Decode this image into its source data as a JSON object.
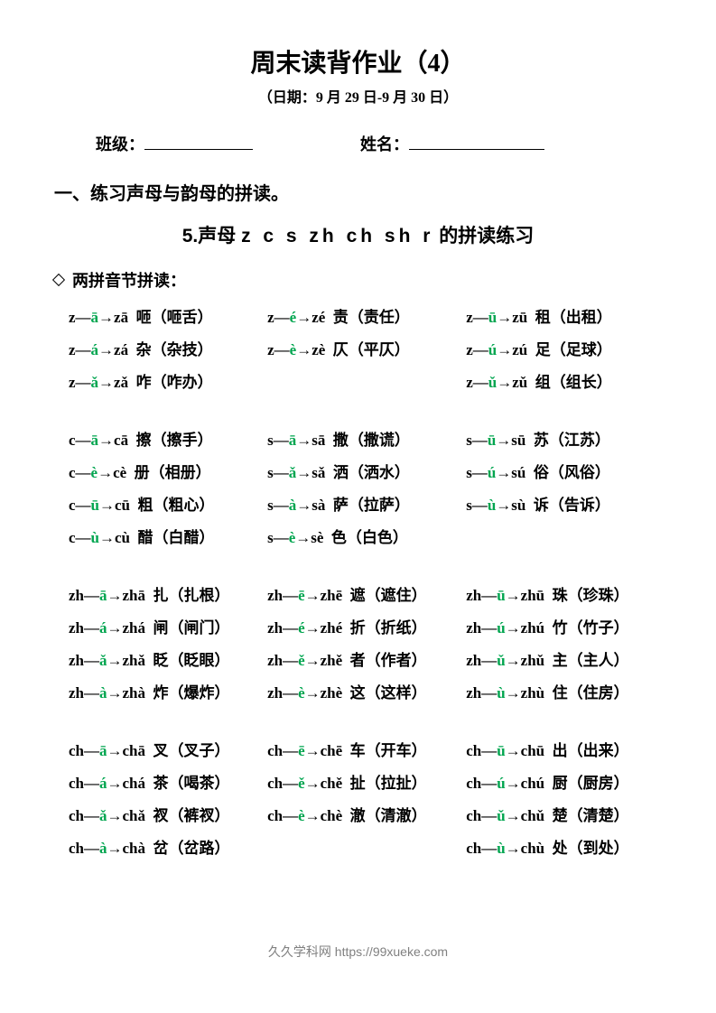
{
  "colors": {
    "text": "#000000",
    "accent": "#00a54f",
    "footer": "#808080",
    "background": "#ffffff"
  },
  "header": {
    "title": "周末读背作业（4）",
    "date": "（日期：9 月 29 日-9 月 30 日）",
    "class_label": "班级：",
    "name_label": "姓名："
  },
  "section": {
    "heading": "一、练习声母与韵母的拼读。",
    "subtitle_prefix": "5.声母 ",
    "subtitle_letters": "z  c  s  zh  ch  sh  r",
    "subtitle_suffix": " 的拼读练习",
    "sub_heading": "两拼音节拼读："
  },
  "blocks": [
    {
      "cols": [
        [
          {
            "i": "z",
            "v": "ā",
            "r": "zā",
            "w": "咂（咂舌）"
          },
          {
            "i": "z",
            "v": "á",
            "r": "zá",
            "w": "杂（杂技）"
          },
          {
            "i": "z",
            "v": "ǎ",
            "r": "zǎ",
            "w": "咋（咋办）"
          }
        ],
        [
          {
            "i": "z",
            "v": "é",
            "r": "zé",
            "w": "责（责任）"
          },
          {
            "i": "z",
            "v": "è",
            "r": "zè",
            "w": "仄（平仄）"
          }
        ],
        [
          {
            "i": "z",
            "v": "ū",
            "r": "zū",
            "w": "租（出租）"
          },
          {
            "i": "z",
            "v": "ú",
            "r": "zú",
            "w": "足（足球）"
          },
          {
            "i": "z",
            "v": "ǔ",
            "r": "zǔ",
            "w": "组（组长）"
          }
        ]
      ]
    },
    {
      "cols": [
        [
          {
            "i": "c",
            "v": "ā",
            "r": "cā",
            "w": "擦（擦手）"
          },
          {
            "i": "c",
            "v": "è",
            "r": "cè",
            "w": "册（相册）"
          },
          {
            "i": "c",
            "v": "ū",
            "r": "cū",
            "w": "粗（粗心）"
          },
          {
            "i": "c",
            "v": "ù",
            "r": "cù",
            "w": "醋（白醋）"
          }
        ],
        [
          {
            "i": "s",
            "v": "ā",
            "r": "sā",
            "w": "撒（撒谎）"
          },
          {
            "i": "s",
            "v": "ǎ",
            "r": "sǎ",
            "w": "洒（洒水）"
          },
          {
            "i": "s",
            "v": "à",
            "r": "sà",
            "w": "萨（拉萨）"
          },
          {
            "i": "s",
            "v": "è",
            "r": "sè",
            "w": "色（白色）"
          }
        ],
        [
          {
            "i": "s",
            "v": "ū",
            "r": "sū",
            "w": "苏（江苏）"
          },
          {
            "i": "s",
            "v": "ú",
            "r": "sú",
            "w": "俗（风俗）"
          },
          {
            "i": "s",
            "v": "ù",
            "r": "sù",
            "w": "诉（告诉）"
          }
        ]
      ]
    },
    {
      "cols": [
        [
          {
            "i": "zh",
            "v": "ā",
            "r": "zhā",
            "w": "扎（扎根）"
          },
          {
            "i": "zh",
            "v": "á",
            "r": "zhá",
            "w": "闸（闸门）"
          },
          {
            "i": "zh",
            "v": "ǎ",
            "r": "zhǎ",
            "w": "眨（眨眼）"
          },
          {
            "i": "zh",
            "v": "à",
            "r": "zhà",
            "w": "炸（爆炸）"
          }
        ],
        [
          {
            "i": "zh",
            "v": "ē",
            "r": "zhē",
            "w": "遮（遮住）"
          },
          {
            "i": "zh",
            "v": "é",
            "r": "zhé",
            "w": "折（折纸）"
          },
          {
            "i": "zh",
            "v": "ě",
            "r": "zhě",
            "w": "者（作者）"
          },
          {
            "i": "zh",
            "v": "è",
            "r": "zhè",
            "w": "这（这样）"
          }
        ],
        [
          {
            "i": "zh",
            "v": "ū",
            "r": "zhū",
            "w": "珠（珍珠）"
          },
          {
            "i": "zh",
            "v": "ú",
            "r": "zhú",
            "w": "竹（竹子）"
          },
          {
            "i": "zh",
            "v": "ǔ",
            "r": "zhǔ",
            "w": "主（主人）"
          },
          {
            "i": "zh",
            "v": "ù",
            "r": "zhù",
            "w": "住（住房）"
          }
        ]
      ]
    },
    {
      "cols": [
        [
          {
            "i": "ch",
            "v": "ā",
            "r": "chā",
            "w": "叉（叉子）"
          },
          {
            "i": "ch",
            "v": "á",
            "r": "chá",
            "w": "茶（喝茶）"
          },
          {
            "i": "ch",
            "v": "ǎ",
            "r": "chǎ",
            "w": "衩（裤衩）"
          },
          {
            "i": "ch",
            "v": "à",
            "r": "chà",
            "w": "岔（岔路）"
          }
        ],
        [
          {
            "i": "ch",
            "v": "ē",
            "r": "chē",
            "w": "车（开车）"
          },
          {
            "i": "ch",
            "v": "ě",
            "r": "chě",
            "w": "扯（拉扯）"
          },
          {
            "i": "ch",
            "v": "è",
            "r": "chè",
            "w": "澈（清澈）"
          }
        ],
        [
          {
            "i": "ch",
            "v": "ū",
            "r": "chū",
            "w": "出（出来）"
          },
          {
            "i": "ch",
            "v": "ú",
            "r": "chú",
            "w": "厨（厨房）"
          },
          {
            "i": "ch",
            "v": "ǔ",
            "r": "chǔ",
            "w": "楚（清楚）"
          },
          {
            "i": "ch",
            "v": "ù",
            "r": "chù",
            "w": "处（到处）"
          }
        ]
      ]
    }
  ],
  "footer": "久久学科网 https://99xueke.com"
}
